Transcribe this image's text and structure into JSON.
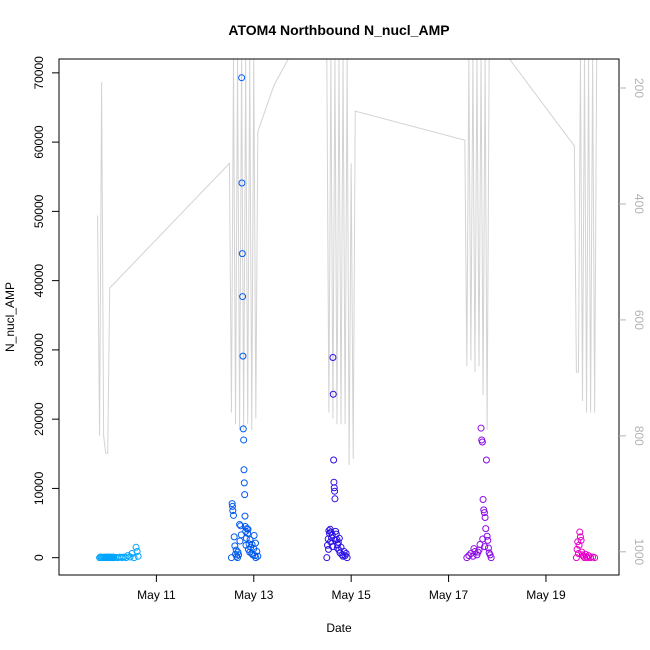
{
  "chart_data": {
    "type": "scatter",
    "title": "ATOM4 Northbound N_nucl_AMP",
    "xlabel": "Date",
    "ylabel": "N_nucl_AMP",
    "x_unit": "date",
    "xlim": [
      "2015-05-09T00:00",
      "2015-05-20T12:00"
    ],
    "ylim": [
      -2500,
      72000
    ],
    "x_ticks": [
      {
        "x": "2015-05-11T00:00",
        "label": "May 11"
      },
      {
        "x": "2015-05-13T00:00",
        "label": "May 13"
      },
      {
        "x": "2015-05-15T00:00",
        "label": "May 15"
      },
      {
        "x": "2015-05-17T00:00",
        "label": "May 17"
      },
      {
        "x": "2015-05-19T00:00",
        "label": "May 19"
      }
    ],
    "y_ticks": [
      0,
      10000,
      20000,
      30000,
      40000,
      50000,
      60000,
      70000
    ],
    "y2_ticks": [
      200,
      400,
      600,
      800,
      1000
    ],
    "y2lim": [
      1040,
      150
    ],
    "grid": false,
    "series": [
      {
        "kind": "points",
        "color": "#00A5FF",
        "points": [
          [
            "2015-05-09T20:00",
            0
          ],
          [
            "2015-05-09T20:30",
            100
          ],
          [
            "2015-05-09T21:00",
            50
          ],
          [
            "2015-05-09T21:30",
            0
          ],
          [
            "2015-05-09T22:00",
            80
          ],
          [
            "2015-05-09T22:30",
            20
          ],
          [
            "2015-05-09T23:00",
            0
          ],
          [
            "2015-05-09T23:20",
            100
          ],
          [
            "2015-05-09T23:40",
            50
          ],
          [
            "2015-05-10T00:00",
            0
          ],
          [
            "2015-05-10T00:20",
            80
          ],
          [
            "2015-05-10T00:40",
            0
          ],
          [
            "2015-05-10T01:00",
            100
          ],
          [
            "2015-05-10T01:20",
            30
          ],
          [
            "2015-05-10T01:40",
            0
          ],
          [
            "2015-05-10T02:00",
            60
          ],
          [
            "2015-05-10T02:20",
            0
          ],
          [
            "2015-05-10T02:40",
            100
          ],
          [
            "2015-05-10T03:00",
            0
          ],
          [
            "2015-05-10T04:00",
            50
          ],
          [
            "2015-05-10T05:00",
            0
          ],
          [
            "2015-05-10T06:00",
            80
          ],
          [
            "2015-05-10T07:00",
            0
          ],
          [
            "2015-05-10T08:00",
            100
          ],
          [
            "2015-05-10T09:00",
            0
          ],
          [
            "2015-05-10T10:00",
            300
          ],
          [
            "2015-05-10T11:00",
            100
          ],
          [
            "2015-05-10T12:00",
            600
          ],
          [
            "2015-05-10T13:00",
            0
          ],
          [
            "2015-05-10T14:00",
            1500
          ],
          [
            "2015-05-10T14:30",
            900
          ],
          [
            "2015-05-10T15:00",
            200
          ]
        ]
      },
      {
        "kind": "points",
        "color": "#005AF0",
        "points": [
          [
            "2015-05-12T13:00",
            0
          ],
          [
            "2015-05-12T13:20",
            7800
          ],
          [
            "2015-05-12T13:30",
            7400
          ],
          [
            "2015-05-12T13:40",
            6800
          ],
          [
            "2015-05-12T14:00",
            6100
          ],
          [
            "2015-05-12T14:20",
            3000
          ],
          [
            "2015-05-12T14:40",
            1700
          ],
          [
            "2015-05-12T15:00",
            500
          ],
          [
            "2015-05-12T15:30",
            200
          ],
          [
            "2015-05-12T16:00",
            0
          ],
          [
            "2015-05-12T16:30",
            400
          ],
          [
            "2015-05-12T17:00",
            4800
          ],
          [
            "2015-05-12T17:30",
            4600
          ],
          [
            "2015-05-12T18:00",
            69300
          ],
          [
            "2015-05-12T18:10",
            54100
          ],
          [
            "2015-05-12T18:20",
            43900
          ],
          [
            "2015-05-12T18:30",
            37700
          ],
          [
            "2015-05-12T18:40",
            29100
          ],
          [
            "2015-05-12T18:50",
            18600
          ],
          [
            "2015-05-12T19:00",
            17000
          ],
          [
            "2015-05-12T19:10",
            12700
          ],
          [
            "2015-05-12T19:20",
            10800
          ],
          [
            "2015-05-12T19:30",
            9100
          ],
          [
            "2015-05-12T19:40",
            6000
          ],
          [
            "2015-05-12T19:50",
            4500
          ],
          [
            "2015-05-12T20:00",
            3800
          ],
          [
            "2015-05-12T20:20",
            2800
          ],
          [
            "2015-05-12T20:40",
            4200
          ],
          [
            "2015-05-12T21:00",
            3500
          ],
          [
            "2015-05-12T21:20",
            1200
          ],
          [
            "2015-05-12T21:40",
            2000
          ],
          [
            "2015-05-12T22:00",
            800
          ],
          [
            "2015-05-12T22:30",
            1500
          ],
          [
            "2015-05-12T23:00",
            600
          ],
          [
            "2015-05-12T23:30",
            400
          ],
          [
            "2015-05-13T00:00",
            1300
          ],
          [
            "2015-05-13T00:30",
            300
          ],
          [
            "2015-05-13T01:00",
            0
          ],
          [
            "2015-05-13T01:30",
            900
          ],
          [
            "2015-05-13T02:00",
            200
          ],
          [
            "2015-05-12T15:20",
            1100
          ],
          [
            "2015-05-12T16:10",
            800
          ],
          [
            "2015-05-12T17:10",
            2400
          ],
          [
            "2015-05-12T17:50",
            3300
          ],
          [
            "2015-05-12T20:10",
            1800
          ],
          [
            "2015-05-12T21:10",
            4100
          ],
          [
            "2015-05-12T22:10",
            2600
          ],
          [
            "2015-05-12T23:10",
            1900
          ],
          [
            "2015-05-13T00:10",
            3200
          ],
          [
            "2015-05-13T00:50",
            2100
          ]
        ]
      },
      {
        "kind": "points",
        "color": "#2A0FE6",
        "points": [
          [
            "2015-05-14T12:00",
            0
          ],
          [
            "2015-05-14T12:20",
            1800
          ],
          [
            "2015-05-14T12:40",
            2700
          ],
          [
            "2015-05-14T13:00",
            3900
          ],
          [
            "2015-05-14T13:20",
            3500
          ],
          [
            "2015-05-14T13:40",
            4100
          ],
          [
            "2015-05-14T14:00",
            3700
          ],
          [
            "2015-05-14T14:20",
            2900
          ],
          [
            "2015-05-14T14:40",
            3300
          ],
          [
            "2015-05-14T15:00",
            28900
          ],
          [
            "2015-05-14T15:10",
            23600
          ],
          [
            "2015-05-14T15:20",
            14100
          ],
          [
            "2015-05-14T15:30",
            10900
          ],
          [
            "2015-05-14T15:40",
            10100
          ],
          [
            "2015-05-14T15:50",
            9600
          ],
          [
            "2015-05-14T16:00",
            8500
          ],
          [
            "2015-05-14T16:20",
            3800
          ],
          [
            "2015-05-14T16:40",
            3400
          ],
          [
            "2015-05-14T17:00",
            2600
          ],
          [
            "2015-05-14T17:20",
            1900
          ],
          [
            "2015-05-14T17:40",
            2200
          ],
          [
            "2015-05-14T18:00",
            1100
          ],
          [
            "2015-05-14T18:30",
            700
          ],
          [
            "2015-05-14T19:00",
            1500
          ],
          [
            "2015-05-14T19:30",
            400
          ],
          [
            "2015-05-14T20:00",
            200
          ],
          [
            "2015-05-14T20:30",
            900
          ],
          [
            "2015-05-14T21:00",
            300
          ],
          [
            "2015-05-14T21:30",
            600
          ],
          [
            "2015-05-14T22:00",
            0
          ],
          [
            "2015-05-14T12:50",
            1200
          ],
          [
            "2015-05-14T13:50",
            2300
          ],
          [
            "2015-05-14T14:50",
            1600
          ],
          [
            "2015-05-14T16:10",
            2500
          ],
          [
            "2015-05-14T17:10",
            1400
          ],
          [
            "2015-05-14T18:10",
            2800
          ]
        ]
      },
      {
        "kind": "points",
        "color": "#8C0AE6",
        "points": [
          [
            "2015-05-17T09:00",
            0
          ],
          [
            "2015-05-17T10:00",
            300
          ],
          [
            "2015-05-17T11:00",
            600
          ],
          [
            "2015-05-17T12:00",
            200
          ],
          [
            "2015-05-17T13:00",
            900
          ],
          [
            "2015-05-17T14:00",
            400
          ],
          [
            "2015-05-17T15:00",
            1100
          ],
          [
            "2015-05-17T16:00",
            18700
          ],
          [
            "2015-05-17T16:20",
            17000
          ],
          [
            "2015-05-17T16:40",
            16700
          ],
          [
            "2015-05-17T17:00",
            8400
          ],
          [
            "2015-05-17T17:20",
            6900
          ],
          [
            "2015-05-17T17:40",
            6500
          ],
          [
            "2015-05-17T18:00",
            5800
          ],
          [
            "2015-05-17T18:20",
            4200
          ],
          [
            "2015-05-17T18:40",
            14100
          ],
          [
            "2015-05-17T19:00",
            3100
          ],
          [
            "2015-05-17T19:20",
            2500
          ],
          [
            "2015-05-17T19:40",
            1400
          ],
          [
            "2015-05-17T20:00",
            700
          ],
          [
            "2015-05-17T20:30",
            400
          ],
          [
            "2015-05-17T21:00",
            0
          ],
          [
            "2015-05-17T12:30",
            1300
          ],
          [
            "2015-05-17T14:30",
            800
          ],
          [
            "2015-05-17T15:30",
            1900
          ],
          [
            "2015-05-17T16:50",
            2700
          ],
          [
            "2015-05-17T17:50",
            1600
          ]
        ]
      },
      {
        "kind": "points",
        "color": "#E600C8",
        "points": [
          [
            "2015-05-19T15:00",
            0
          ],
          [
            "2015-05-19T15:20",
            1200
          ],
          [
            "2015-05-19T15:40",
            2300
          ],
          [
            "2015-05-19T16:00",
            600
          ],
          [
            "2015-05-19T16:20",
            1800
          ],
          [
            "2015-05-19T16:40",
            3700
          ],
          [
            "2015-05-19T17:00",
            3000
          ],
          [
            "2015-05-19T17:20",
            2500
          ],
          [
            "2015-05-19T17:40",
            800
          ],
          [
            "2015-05-19T18:00",
            400
          ],
          [
            "2015-05-19T18:30",
            200
          ],
          [
            "2015-05-19T19:00",
            0
          ],
          [
            "2015-05-19T19:30",
            500
          ],
          [
            "2015-05-19T20:00",
            100
          ],
          [
            "2015-05-19T20:30",
            0
          ],
          [
            "2015-05-19T21:00",
            300
          ],
          [
            "2015-05-19T22:00",
            0
          ],
          [
            "2015-05-19T23:00",
            100
          ],
          [
            "2015-05-20T00:00",
            0
          ]
        ]
      },
      {
        "kind": "line",
        "axis": "right",
        "color": "#d3d3d3",
        "points": [
          [
            "2015-05-09T19:00",
            420
          ],
          [
            "2015-05-09T20:00",
            800
          ],
          [
            "2015-05-09T21:00",
            190
          ],
          [
            "2015-05-09T22:00",
            800
          ],
          [
            "2015-05-09T23:00",
            830
          ],
          [
            "2015-05-10T00:00",
            830
          ],
          [
            "2015-05-10T01:00",
            545
          ],
          [
            "2015-05-12T12:00",
            330
          ],
          [
            "2015-05-12T13:00",
            760
          ],
          [
            "2015-05-12T14:00",
            150
          ],
          [
            "2015-05-12T15:00",
            780
          ],
          [
            "2015-05-12T16:00",
            150
          ],
          [
            "2015-05-12T17:00",
            790
          ],
          [
            "2015-05-12T18:00",
            150
          ],
          [
            "2015-05-12T19:00",
            790
          ],
          [
            "2015-05-12T20:00",
            150
          ],
          [
            "2015-05-12T21:00",
            780
          ],
          [
            "2015-05-12T22:00",
            150
          ],
          [
            "2015-05-12T23:00",
            790
          ],
          [
            "2015-05-13T00:00",
            150
          ],
          [
            "2015-05-13T01:00",
            770
          ],
          [
            "2015-05-13T02:00",
            275
          ],
          [
            "2015-05-13T10:00",
            195
          ],
          [
            "2015-05-13T17:00",
            150
          ],
          [
            "2015-05-13T23:00",
            150
          ],
          [
            "2015-05-14T12:00",
            150
          ],
          [
            "2015-05-14T13:00",
            760
          ],
          [
            "2015-05-14T14:00",
            150
          ],
          [
            "2015-05-14T15:00",
            770
          ],
          [
            "2015-05-14T16:00",
            150
          ],
          [
            "2015-05-14T17:00",
            780
          ],
          [
            "2015-05-14T18:00",
            150
          ],
          [
            "2015-05-14T19:00",
            780
          ],
          [
            "2015-05-14T20:00",
            150
          ],
          [
            "2015-05-14T21:00",
            780
          ],
          [
            "2015-05-14T22:00",
            150
          ],
          [
            "2015-05-14T23:00",
            850
          ],
          [
            "2015-05-15T00:00",
            330
          ],
          [
            "2015-05-15T01:00",
            840
          ],
          [
            "2015-05-15T02:00",
            240
          ],
          [
            "2015-05-17T08:00",
            290
          ],
          [
            "2015-05-17T09:00",
            680
          ],
          [
            "2015-05-17T10:00",
            150
          ],
          [
            "2015-05-17T11:00",
            670
          ],
          [
            "2015-05-17T12:00",
            150
          ],
          [
            "2015-05-17T13:00",
            690
          ],
          [
            "2015-05-17T14:00",
            150
          ],
          [
            "2015-05-17T15:00",
            680
          ],
          [
            "2015-05-17T16:00",
            150
          ],
          [
            "2015-05-17T17:00",
            730
          ],
          [
            "2015-05-17T18:00",
            150
          ],
          [
            "2015-05-17T19:00",
            790
          ],
          [
            "2015-05-17T20:00",
            150
          ],
          [
            "2015-05-18T06:00",
            150
          ],
          [
            "2015-05-19T14:00",
            300
          ],
          [
            "2015-05-19T15:00",
            690
          ],
          [
            "2015-05-19T16:00",
            690
          ],
          [
            "2015-05-19T17:00",
            150
          ],
          [
            "2015-05-19T18:00",
            740
          ],
          [
            "2015-05-19T19:00",
            150
          ],
          [
            "2015-05-19T20:00",
            760
          ],
          [
            "2015-05-19T21:00",
            150
          ],
          [
            "2015-05-19T22:00",
            760
          ],
          [
            "2015-05-19T23:00",
            150
          ],
          [
            "2015-05-20T00:00",
            760
          ],
          [
            "2015-05-20T01:00",
            150
          ]
        ]
      }
    ]
  }
}
